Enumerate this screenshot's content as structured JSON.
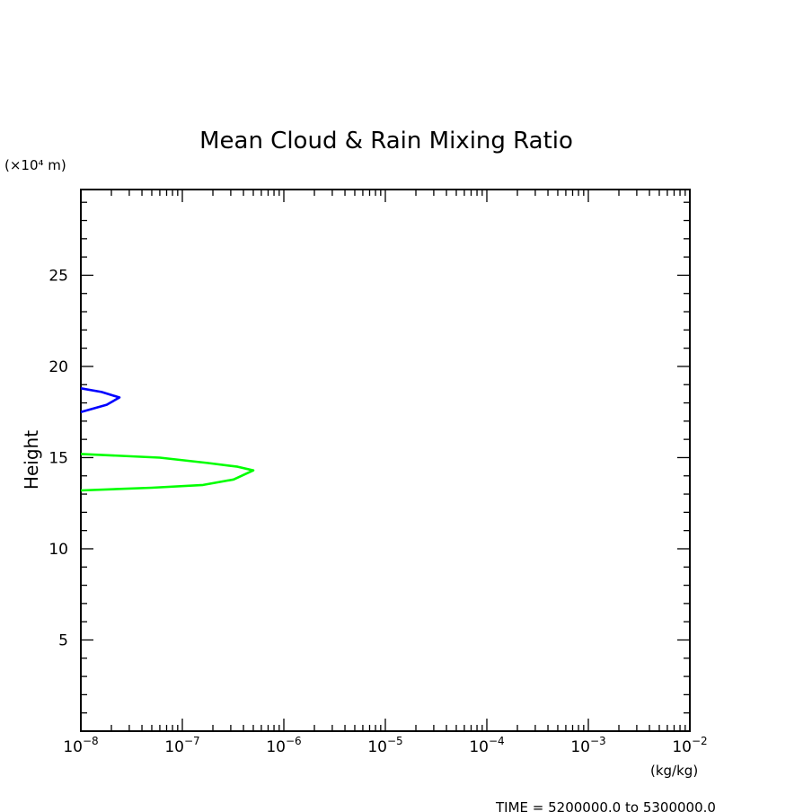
{
  "chart_data": {
    "type": "line",
    "title": "Mean Cloud & Rain Mixing Ratio",
    "ylabel": "Height",
    "y_multiplier_label": "(×10⁴ m)",
    "x_unit_label": "(kg/kg)",
    "footer_text": "TIME = 5200000.0 to 5300000.0",
    "xscale": "log",
    "xlim": [
      1e-08,
      0.01
    ],
    "ylim": [
      0,
      29.7
    ],
    "grid": false,
    "x_ticks": [
      {
        "mant": "10",
        "exp": "−8",
        "value": 1e-08
      },
      {
        "mant": "10",
        "exp": "−7",
        "value": 1e-07
      },
      {
        "mant": "10",
        "exp": "−6",
        "value": 1e-06
      },
      {
        "mant": "10",
        "exp": "−5",
        "value": 1e-05
      },
      {
        "mant": "10",
        "exp": "−4",
        "value": 0.0001
      },
      {
        "mant": "10",
        "exp": "−3",
        "value": 0.001
      },
      {
        "mant": "10",
        "exp": "−2",
        "value": 0.01
      }
    ],
    "y_ticks": [
      {
        "label": "5",
        "value": 5
      },
      {
        "label": "10",
        "value": 10
      },
      {
        "label": "15",
        "value": 15
      },
      {
        "label": "20",
        "value": 20
      },
      {
        "label": "25",
        "value": 25
      }
    ],
    "series": [
      {
        "color": "#0000ff",
        "points": [
          [
            1e-08,
            18.8
          ],
          [
            1.6e-08,
            18.6
          ],
          [
            2.4e-08,
            18.3
          ],
          [
            1.8e-08,
            17.9
          ],
          [
            1e-08,
            17.5
          ]
        ]
      },
      {
        "color": "#00ff00",
        "points": [
          [
            1e-08,
            15.2
          ],
          [
            6e-08,
            15.0
          ],
          [
            1.8e-07,
            14.7
          ],
          [
            3.5e-07,
            14.5
          ],
          [
            5e-07,
            14.3
          ],
          [
            3.2e-07,
            13.8
          ],
          [
            1.6e-07,
            13.5
          ],
          [
            5e-08,
            13.35
          ],
          [
            1e-08,
            13.2
          ]
        ]
      }
    ]
  }
}
